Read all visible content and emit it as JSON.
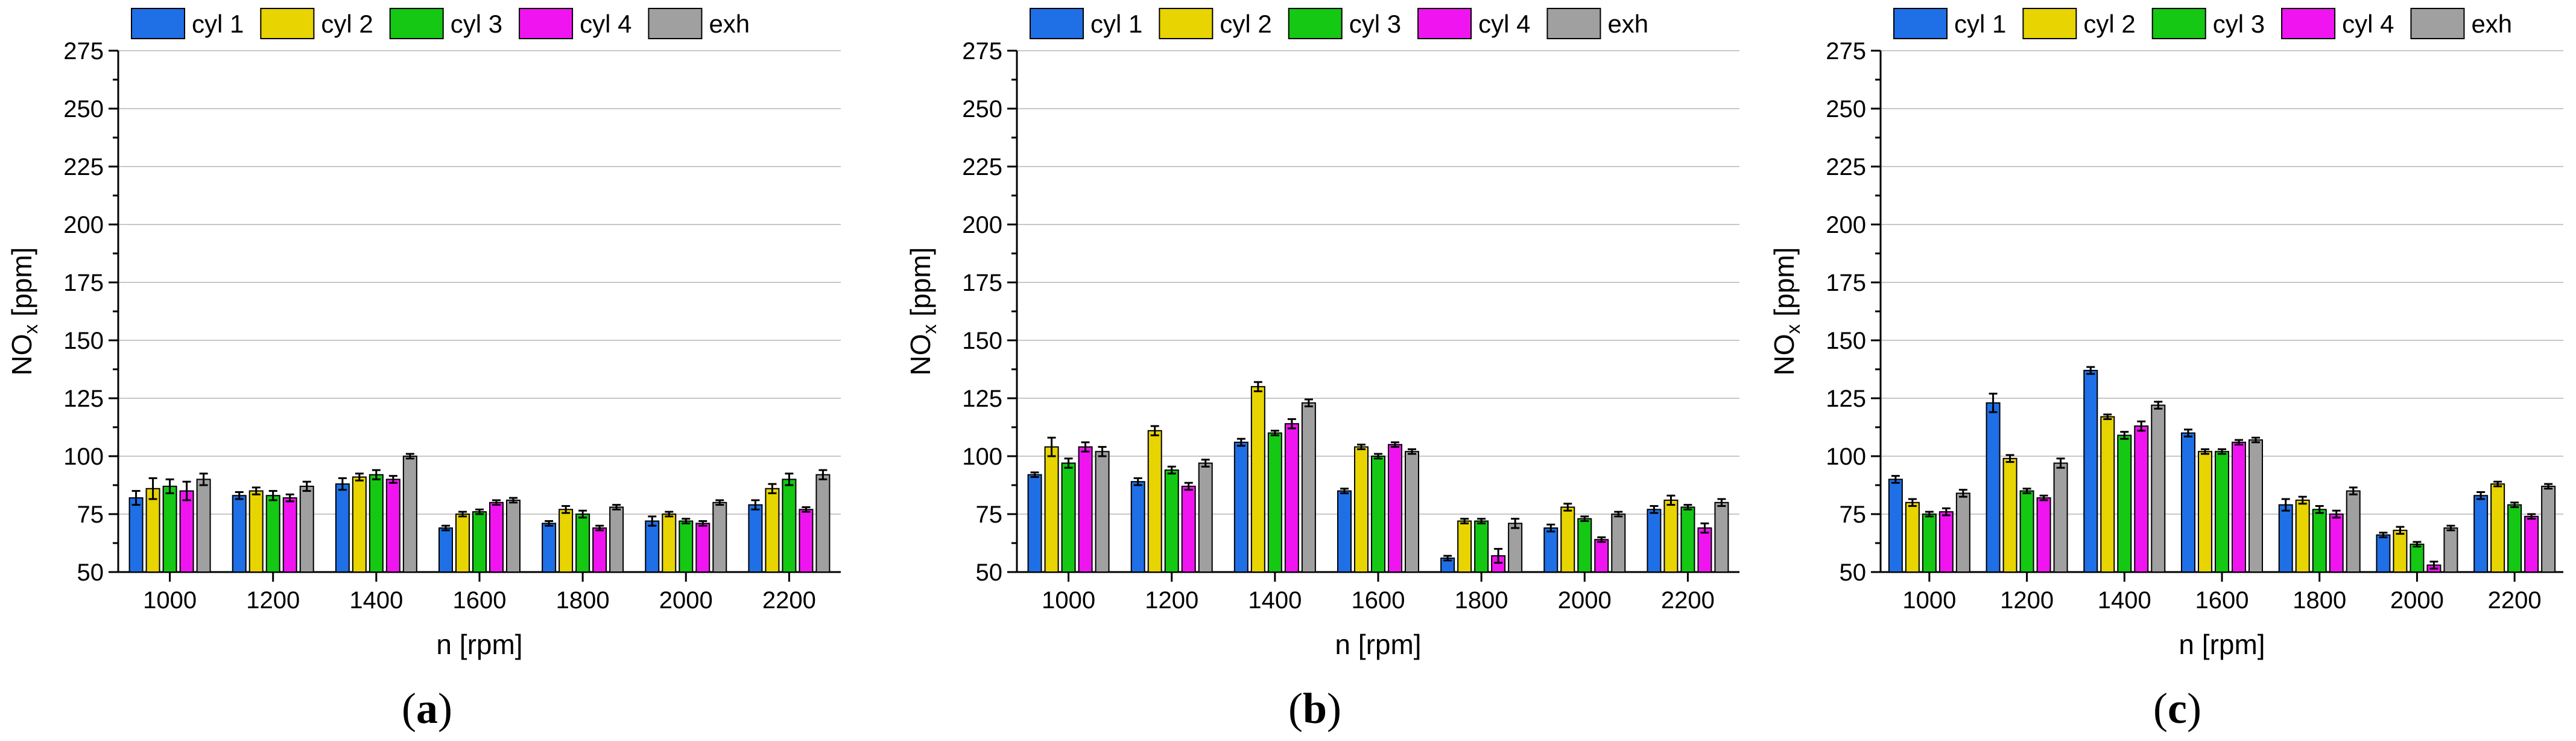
{
  "colors": {
    "series": [
      "#1f6fe6",
      "#e8d400",
      "#14c814",
      "#f014f0",
      "#a0a0a0"
    ],
    "grid": "#c8c8c8",
    "axis": "#000000"
  },
  "chart_data": [
    {
      "type": "bar",
      "panel_label": "(a)",
      "xlabel": "n [rpm]",
      "ylabel": "NO",
      "ylabel_sub": "x",
      "ylabel_unit": " [ppm]",
      "ylim": [
        50,
        275
      ],
      "yticks": [
        "50",
        "75",
        "100",
        "125",
        "150",
        "175",
        "200",
        "225",
        "250",
        "275"
      ],
      "grid": true,
      "legend_position": "top",
      "categories": [
        "1000",
        "1200",
        "1400",
        "1600",
        "1800",
        "2000",
        "2200"
      ],
      "series": [
        {
          "name": "cyl 1",
          "values": [
            82,
            83,
            88,
            69,
            71,
            72,
            79
          ],
          "errors": [
            3,
            1.5,
            2.5,
            1,
            1,
            2,
            2
          ]
        },
        {
          "name": "cyl 2",
          "values": [
            86,
            85,
            91,
            75,
            77,
            75,
            86
          ],
          "errors": [
            4.5,
            1.5,
            1.5,
            1,
            1.5,
            1,
            2
          ]
        },
        {
          "name": "cyl 3",
          "values": [
            87,
            83,
            92,
            76,
            75,
            72,
            90
          ],
          "errors": [
            3,
            2,
            2,
            1,
            1.5,
            1,
            2.5
          ]
        },
        {
          "name": "cyl 4",
          "values": [
            85,
            82,
            90,
            80,
            69,
            71,
            77
          ],
          "errors": [
            4,
            1.5,
            1.5,
            1,
            1,
            1,
            1
          ]
        },
        {
          "name": "exh",
          "values": [
            90,
            87,
            100,
            81,
            78,
            80,
            92
          ],
          "errors": [
            2.5,
            2,
            1,
            1,
            1,
            1,
            2
          ]
        }
      ]
    },
    {
      "type": "bar",
      "panel_label": "(b)",
      "xlabel": "n [rpm]",
      "ylabel": "NO",
      "ylabel_sub": "x",
      "ylabel_unit": " [ppm]",
      "ylim": [
        50,
        275
      ],
      "yticks": [
        "50",
        "75",
        "100",
        "125",
        "150",
        "175",
        "200",
        "225",
        "250",
        "275"
      ],
      "grid": true,
      "legend_position": "top",
      "categories": [
        "1000",
        "1200",
        "1400",
        "1600",
        "1800",
        "2000",
        "2200"
      ],
      "series": [
        {
          "name": "cyl 1",
          "values": [
            92,
            89,
            106,
            85,
            56,
            69,
            77
          ],
          "errors": [
            1,
            1.5,
            1.5,
            1,
            1,
            1.5,
            1.5
          ]
        },
        {
          "name": "cyl 2",
          "values": [
            104,
            111,
            130,
            104,
            72,
            78,
            81
          ],
          "errors": [
            4,
            2,
            2,
            1,
            1,
            1.5,
            2
          ]
        },
        {
          "name": "cyl 3",
          "values": [
            97,
            94,
            110,
            100,
            72,
            73,
            78
          ],
          "errors": [
            2,
            1.5,
            1,
            1,
            1,
            1,
            1
          ]
        },
        {
          "name": "cyl 4",
          "values": [
            104,
            87,
            114,
            105,
            57,
            64,
            69
          ],
          "errors": [
            2,
            1.5,
            2,
            1,
            3,
            1,
            2
          ]
        },
        {
          "name": "exh",
          "values": [
            102,
            97,
            123,
            102,
            71,
            75,
            80
          ],
          "errors": [
            2,
            1.5,
            1.5,
            1,
            2,
            1,
            1.5
          ]
        }
      ]
    },
    {
      "type": "bar",
      "panel_label": "(c)",
      "xlabel": "n [rpm]",
      "ylabel": "NO",
      "ylabel_sub": "x",
      "ylabel_unit": " [ppm]",
      "ylim": [
        50,
        275
      ],
      "yticks": [
        "50",
        "75",
        "100",
        "125",
        "150",
        "175",
        "200",
        "225",
        "250",
        "275"
      ],
      "grid": true,
      "legend_position": "top",
      "categories": [
        "1000",
        "1200",
        "1400",
        "1600",
        "1800",
        "2000",
        "2200"
      ],
      "series": [
        {
          "name": "cyl 1",
          "values": [
            90,
            123,
            137,
            110,
            79,
            66,
            83
          ],
          "errors": [
            1.5,
            4,
            1.5,
            1.5,
            2.5,
            1,
            1.5
          ]
        },
        {
          "name": "cyl 2",
          "values": [
            80,
            99,
            117,
            102,
            81,
            68,
            88
          ],
          "errors": [
            1.5,
            1.5,
            1,
            1,
            1.5,
            1.5,
            1
          ]
        },
        {
          "name": "cyl 3",
          "values": [
            75,
            85,
            109,
            102,
            77,
            62,
            79
          ],
          "errors": [
            1,
            1,
            1.5,
            1,
            1.5,
            1,
            1
          ]
        },
        {
          "name": "cyl 4",
          "values": [
            76,
            82,
            113,
            106,
            75,
            53,
            74
          ],
          "errors": [
            1.5,
            1,
            2,
            1,
            1.5,
            1.5,
            1
          ]
        },
        {
          "name": "exh",
          "values": [
            84,
            97,
            122,
            107,
            85,
            69,
            87
          ],
          "errors": [
            1.5,
            2,
            1.5,
            1,
            1.5,
            1,
            1
          ]
        }
      ]
    }
  ]
}
